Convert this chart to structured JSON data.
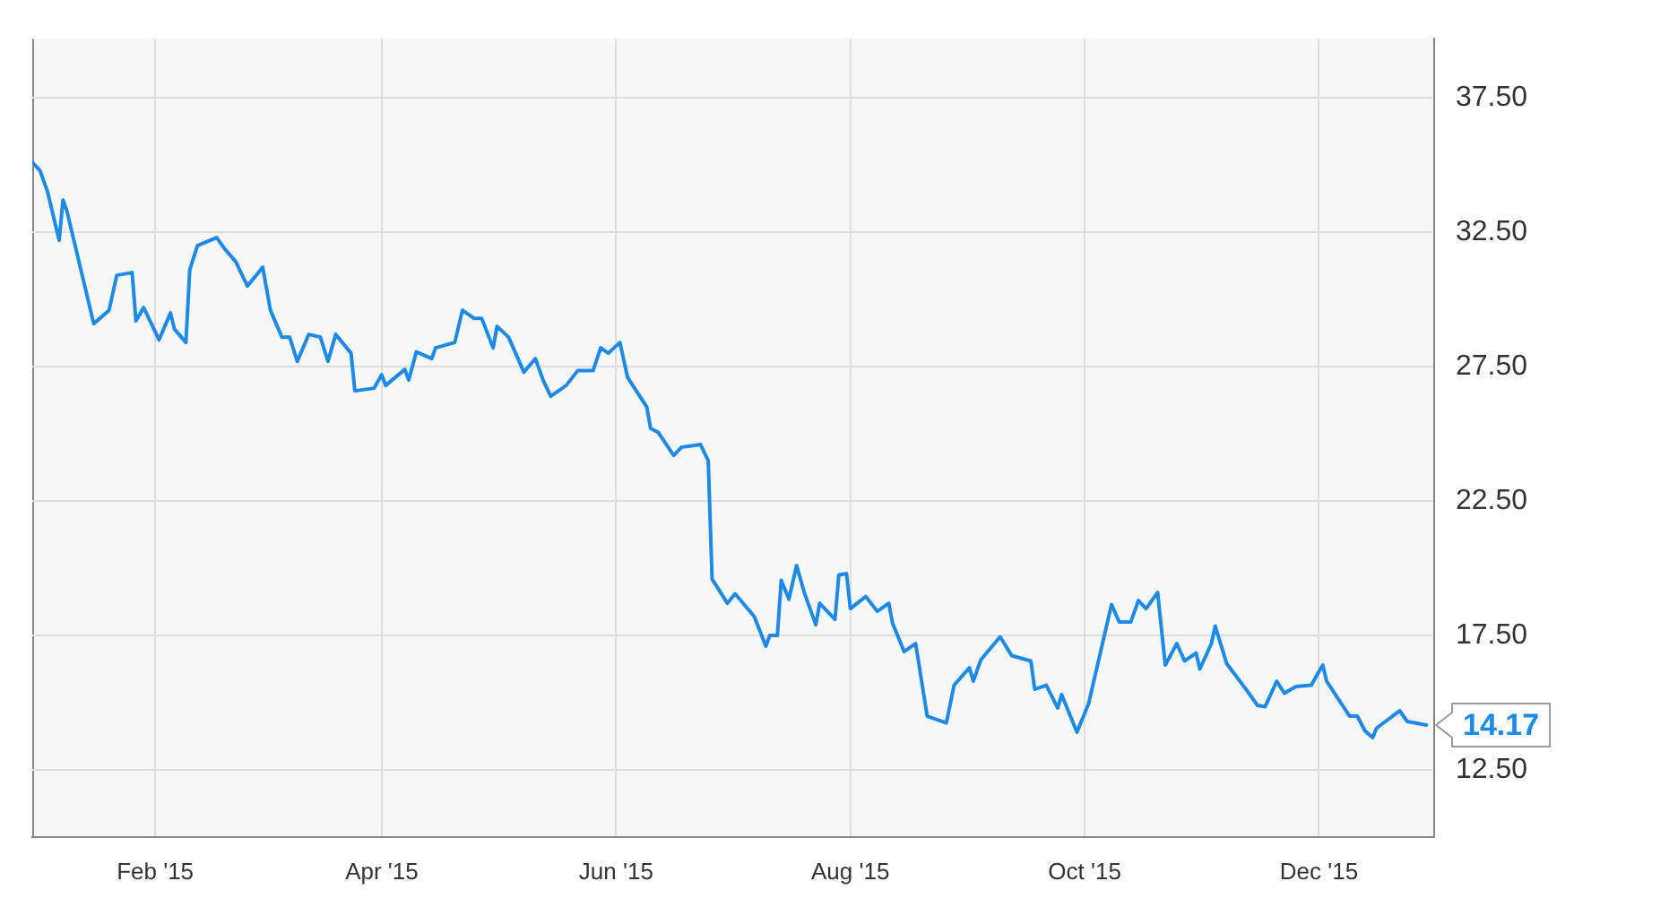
{
  "chart_data": {
    "type": "line",
    "color": "#1e8ae8",
    "grid": true,
    "legend": false,
    "marker": "none",
    "line_style": "solid",
    "xlim": [
      "2014-12-31",
      "2015-12-31"
    ],
    "xticks": [
      {
        "value": "2015-02-01",
        "label": "Feb '15"
      },
      {
        "value": "2015-04-01",
        "label": "Apr '15"
      },
      {
        "value": "2015-06-01",
        "label": "Jun '15"
      },
      {
        "value": "2015-08-01",
        "label": "Aug '15"
      },
      {
        "value": "2015-10-01",
        "label": "Oct '15"
      },
      {
        "value": "2015-12-01",
        "label": "Dec '15"
      }
    ],
    "ylim": [
      10,
      39.7
    ],
    "yticks": [
      {
        "value": 12.5,
        "label": "12.50"
      },
      {
        "value": 17.5,
        "label": "17.50"
      },
      {
        "value": 22.5,
        "label": "22.50"
      },
      {
        "value": 27.5,
        "label": "27.50"
      },
      {
        "value": 32.5,
        "label": "32.50"
      },
      {
        "value": 37.5,
        "label": "37.50"
      }
    ],
    "annotations": [
      {
        "text": "14.17",
        "x": "2015-12-29",
        "y": 14.17
      }
    ],
    "x": [
      "2014-12-31",
      "2015-01-02",
      "2015-01-04",
      "2015-01-07",
      "2015-01-08",
      "2015-01-09",
      "2015-01-16",
      "2015-01-20",
      "2015-01-22",
      "2015-01-26",
      "2015-01-27",
      "2015-01-29",
      "2015-02-02",
      "2015-02-05",
      "2015-02-06",
      "2015-02-09",
      "2015-02-10",
      "2015-02-12",
      "2015-02-17",
      "2015-02-19",
      "2015-02-22",
      "2015-02-25",
      "2015-03-01",
      "2015-03-03",
      "2015-03-06",
      "2015-03-08",
      "2015-03-10",
      "2015-03-13",
      "2015-03-16",
      "2015-03-18",
      "2015-03-20",
      "2015-03-24",
      "2015-03-25",
      "2015-03-30",
      "2015-04-01",
      "2015-04-02",
      "2015-04-07",
      "2015-04-08",
      "2015-04-10",
      "2015-04-14",
      "2015-04-15",
      "2015-04-20",
      "2015-04-22",
      "2015-04-25",
      "2015-04-27",
      "2015-04-30",
      "2015-05-01",
      "2015-05-04",
      "2015-05-08",
      "2015-05-11",
      "2015-05-13",
      "2015-05-15",
      "2015-05-19",
      "2015-05-22",
      "2015-05-26",
      "2015-05-28",
      "2015-05-30",
      "2015-06-02",
      "2015-06-04",
      "2015-06-09",
      "2015-06-10",
      "2015-06-12",
      "2015-06-16",
      "2015-06-18",
      "2015-06-23",
      "2015-06-25",
      "2015-06-26",
      "2015-06-30",
      "2015-07-02",
      "2015-07-07",
      "2015-07-10",
      "2015-07-11",
      "2015-07-13",
      "2015-07-14",
      "2015-07-16",
      "2015-07-18",
      "2015-07-20",
      "2015-07-23",
      "2015-07-24",
      "2015-07-28",
      "2015-07-29",
      "2015-07-31",
      "2015-08-01",
      "2015-08-05",
      "2015-08-08",
      "2015-08-11",
      "2015-08-12",
      "2015-08-15",
      "2015-08-18",
      "2015-08-21",
      "2015-08-26",
      "2015-08-28",
      "2015-09-01",
      "2015-09-02",
      "2015-09-04",
      "2015-09-09",
      "2015-09-12",
      "2015-09-17",
      "2015-09-18",
      "2015-09-21",
      "2015-09-24",
      "2015-09-25",
      "2015-09-29",
      "2015-10-02",
      "2015-10-08",
      "2015-10-10",
      "2015-10-13",
      "2015-10-15",
      "2015-10-17",
      "2015-10-20",
      "2015-10-22",
      "2015-10-25",
      "2015-10-27",
      "2015-10-30",
      "2015-10-31",
      "2015-11-03",
      "2015-11-04",
      "2015-11-07",
      "2015-11-12",
      "2015-11-15",
      "2015-11-17",
      "2015-11-20",
      "2015-11-22",
      "2015-11-25",
      "2015-11-29",
      "2015-12-02",
      "2015-12-03",
      "2015-12-09",
      "2015-12-11",
      "2015-12-13",
      "2015-12-15",
      "2015-12-16",
      "2015-12-22",
      "2015-12-24",
      "2015-12-29"
    ],
    "values": [
      35.1,
      34.8,
      34.0,
      32.2,
      33.7,
      33.3,
      29.1,
      29.6,
      30.9,
      31.0,
      29.2,
      29.7,
      28.5,
      29.5,
      28.9,
      28.4,
      31.1,
      32.0,
      32.3,
      31.9,
      31.4,
      30.5,
      31.2,
      29.6,
      28.6,
      28.6,
      27.7,
      28.7,
      28.6,
      27.7,
      28.7,
      28.0,
      26.6,
      26.7,
      27.2,
      26.8,
      27.4,
      27.0,
      28.05,
      27.8,
      28.2,
      28.4,
      29.6,
      29.3,
      29.3,
      28.2,
      29.0,
      28.6,
      27.3,
      27.8,
      27.0,
      26.4,
      26.8,
      27.35,
      27.35,
      28.2,
      28.0,
      28.4,
      27.1,
      26.0,
      25.2,
      25.05,
      24.2,
      24.5,
      24.6,
      24.0,
      19.6,
      18.7,
      19.05,
      18.2,
      17.1,
      17.5,
      17.5,
      19.55,
      18.85,
      20.1,
      19.1,
      17.9,
      18.7,
      18.1,
      19.75,
      19.8,
      18.5,
      18.95,
      18.4,
      18.7,
      17.95,
      16.9,
      17.2,
      14.5,
      14.25,
      15.65,
      16.3,
      15.8,
      16.6,
      17.45,
      16.75,
      16.55,
      15.5,
      15.65,
      14.8,
      15.3,
      13.9,
      14.95,
      18.65,
      18.0,
      18.0,
      18.8,
      18.5,
      19.1,
      16.4,
      17.2,
      16.55,
      16.85,
      16.25,
      17.2,
      17.85,
      16.45,
      15.5,
      14.9,
      14.85,
      15.8,
      15.35,
      15.6,
      15.65,
      16.4,
      15.8,
      14.5,
      14.5,
      13.95,
      13.7,
      14.05,
      14.7,
      14.3,
      14.17
    ]
  }
}
